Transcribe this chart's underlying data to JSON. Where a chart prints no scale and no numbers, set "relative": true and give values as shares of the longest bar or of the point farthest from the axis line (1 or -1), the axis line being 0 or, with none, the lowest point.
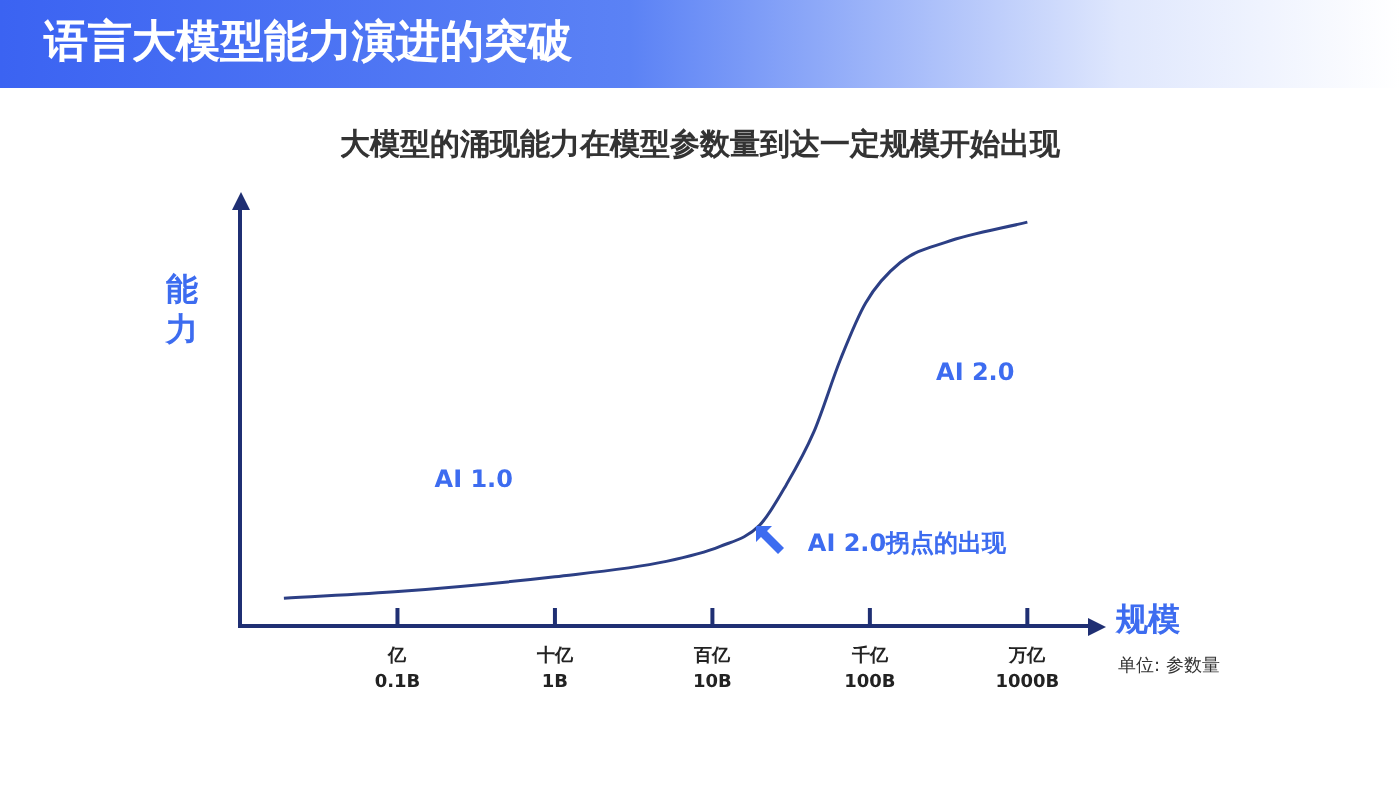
{
  "chart_data": {
    "type": "line",
    "title": "语言大模型能力演进的突破",
    "subtitle": "大模型的涌现能力在模型参数量到达一定规模开始出现",
    "xlabel": "规模",
    "ylabel": "能力",
    "relative": true,
    "log": "x",
    "legend": false,
    "x": [
      0.019,
      0.106,
      1.0,
      5.1,
      11.2,
      20,
      29.5,
      44,
      65,
      94,
      156,
      302,
      1000
    ],
    "series": [
      {
        "color": "#2c3f85",
        "values": [
          0.069,
          0.086,
          0.122,
          0.16,
          0.197,
          0.25,
          0.35,
          0.48,
          0.66,
          0.8,
          0.9,
          0.95,
          1.0
        ]
      }
    ],
    "xlim": [
      0.01,
      2500
    ],
    "xticks": [
      {
        "value": 0.1,
        "label": "0.1B"
      },
      {
        "value": 1,
        "label": "1B"
      },
      {
        "value": 10,
        "label": "10B"
      },
      {
        "value": 100,
        "label": "100B"
      },
      {
        "value": 1000,
        "label": "1000B"
      }
    ],
    "annotations": [
      "AI 1.0",
      "AI 2.0",
      {
        "text": "AI 2.0拐点的出现",
        "x": 20,
        "y": 0.25
      },
      "单位: 参数量",
      "亿",
      "十亿",
      "百亿",
      "千亿",
      "万亿"
    ]
  }
}
